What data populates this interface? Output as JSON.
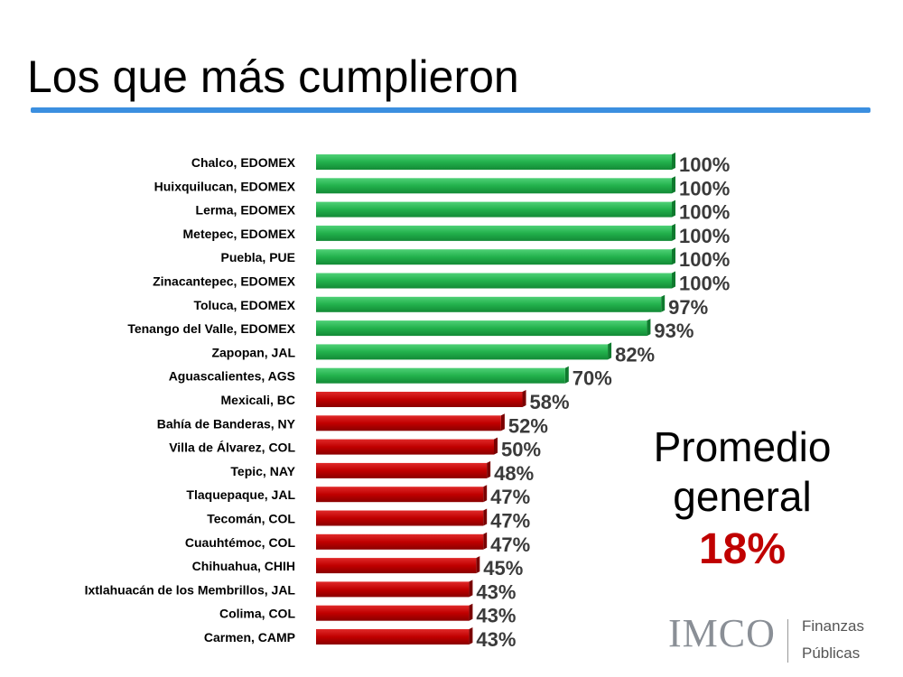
{
  "title": "Los que más cumplieron",
  "summary": {
    "line1": "Promedio",
    "line2": "general",
    "value": "18%"
  },
  "logo": {
    "mark": "IMCO",
    "line1": "Finanzas",
    "line2": "Públicas"
  },
  "colors": {
    "above": "#22b14c",
    "below": "#c00000",
    "title_rule": "#3b8fe0"
  },
  "chart_data": {
    "type": "bar",
    "orientation": "horizontal",
    "categories": [
      "Chalco, EDOMEX",
      "Huixquilucan, EDOMEX",
      "Lerma, EDOMEX",
      "Metepec, EDOMEX",
      "Puebla, PUE",
      "Zinacantepec, EDOMEX",
      "Toluca, EDOMEX",
      "Tenango del Valle, EDOMEX",
      "Zapopan, JAL",
      "Aguascalientes, AGS",
      "Mexicali, BC",
      "Bahía de Banderas, NY",
      "Villa de Álvarez, COL",
      "Tepic, NAY",
      "Tlaquepaque, JAL",
      "Tecomán, COL",
      "Cuauhtémoc, COL",
      "Chihuahua, CHIH",
      "Ixtlahuacán de los Membrillos, JAL",
      "Colima, COL",
      "Carmen, CAMP"
    ],
    "values": [
      100,
      100,
      100,
      100,
      100,
      100,
      97,
      93,
      82,
      70,
      58,
      52,
      50,
      48,
      47,
      47,
      47,
      45,
      43,
      43,
      43
    ],
    "value_labels": [
      "100%",
      "100%",
      "100%",
      "100%",
      "100%",
      "100%",
      "97%",
      "93%",
      "82%",
      "70%",
      "58%",
      "52%",
      "50%",
      "48%",
      "47%",
      "47%",
      "47%",
      "45%",
      "43%",
      "43%",
      "43%"
    ],
    "bar_colors": [
      "green",
      "green",
      "green",
      "green",
      "green",
      "green",
      "green",
      "green",
      "green",
      "green",
      "red",
      "red",
      "red",
      "red",
      "red",
      "red",
      "red",
      "red",
      "red",
      "red",
      "red"
    ],
    "xlim": [
      0,
      100
    ],
    "grid": false,
    "legend": "none"
  }
}
